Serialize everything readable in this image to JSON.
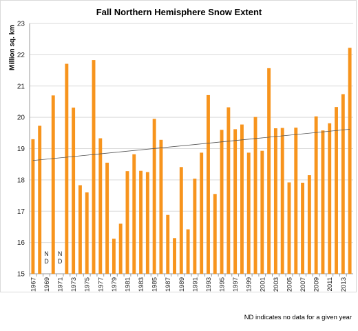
{
  "footnote": "ND indicates no data for a given year",
  "chart_data": {
    "type": "bar",
    "title": "Fall Northern Hemisphere Snow Extent",
    "xlabel": "",
    "ylabel": "Million sq. km",
    "ylim": [
      15,
      23
    ],
    "yticks": [
      15,
      16,
      17,
      18,
      19,
      20,
      21,
      22,
      23
    ],
    "grid": "horizontal",
    "bar_color": "#f7941d",
    "categories": [
      "1967",
      "1968",
      "1969",
      "1970",
      "1971",
      "1972",
      "1973",
      "1974",
      "1975",
      "1976",
      "1977",
      "1978",
      "1979",
      "1980",
      "1981",
      "1982",
      "1983",
      "1984",
      "1985",
      "1986",
      "1987",
      "1988",
      "1989",
      "1990",
      "1991",
      "1992",
      "1993",
      "1994",
      "1995",
      "1996",
      "1997",
      "1998",
      "1999",
      "2000",
      "2001",
      "2002",
      "2003",
      "2004",
      "2005",
      "2006",
      "2007",
      "2008",
      "2009",
      "2010",
      "2011",
      "2012",
      "2013",
      "2014"
    ],
    "tick_labels": [
      "1967",
      "",
      "1969",
      "",
      "1971",
      "",
      "1973",
      "",
      "1975",
      "",
      "1977",
      "",
      "1979",
      "",
      "1981",
      "",
      "1983",
      "",
      "1985",
      "",
      "1987",
      "",
      "1989",
      "",
      "1991",
      "",
      "1993",
      "",
      "1995",
      "",
      "1997",
      "",
      "1999",
      "",
      "2001",
      "",
      "2003",
      "",
      "2005",
      "",
      "2007",
      "",
      "2009",
      "",
      "2011",
      "",
      "2013",
      ""
    ],
    "values": [
      19.3,
      19.73,
      null,
      20.7,
      null,
      21.71,
      20.31,
      17.83,
      17.6,
      21.83,
      19.33,
      18.55,
      16.12,
      16.6,
      18.28,
      18.82,
      18.29,
      18.25,
      19.95,
      19.28,
      16.88,
      16.14,
      18.41,
      16.42,
      18.04,
      18.87,
      20.71,
      17.55,
      19.6,
      20.32,
      19.62,
      19.77,
      18.87,
      20.01,
      18.93,
      21.57,
      19.65,
      19.66,
      17.92,
      19.67,
      17.91,
      18.15,
      20.03,
      19.58,
      19.81,
      20.33,
      20.74,
      22.22
    ],
    "no_data": [
      {
        "year": "1969",
        "label": "N\nD"
      },
      {
        "year": "1971",
        "label": "N\nD"
      }
    ],
    "trendline": {
      "start": 18.62,
      "end": 19.62,
      "color": "#555555"
    }
  }
}
